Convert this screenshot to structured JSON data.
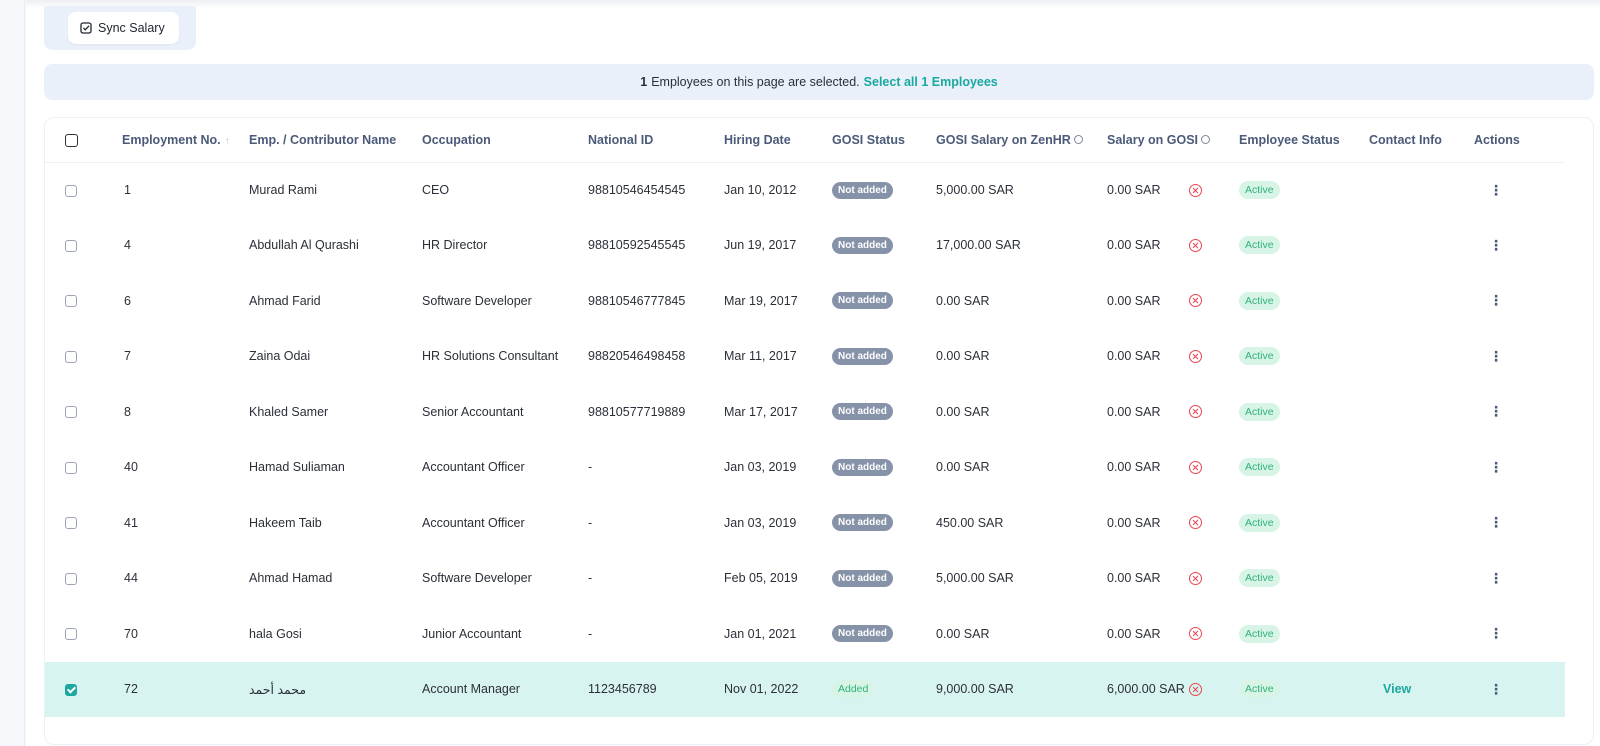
{
  "toolbar": {
    "sync_label": "Sync Salary"
  },
  "selection": {
    "count": "1",
    "text": "Employees on this page are selected.",
    "select_all_label": "Select all 1 Employees"
  },
  "table": {
    "headers": {
      "employment_no": "Employment No.",
      "name": "Emp. / Contributor Name",
      "occupation": "Occupation",
      "national_id": "National ID",
      "hiring_date": "Hiring Date",
      "gosi_status": "GOSI Status",
      "gosi_salary_zenhr": "GOSI Salary on ZenHR",
      "salary_on_gosi": "Salary on GOSI",
      "employee_status": "Employee Status",
      "contact_info": "Contact Info",
      "actions": "Actions"
    },
    "rows": [
      {
        "no": "1",
        "name": "Murad Rami",
        "occupation": "CEO",
        "national_id": "98810546454545",
        "hiring_date": "Jan 10, 2012",
        "gosi_status": "Not added",
        "gosi_salary": "5,000.00 SAR",
        "salary_on_gosi": "0.00 SAR",
        "status": "Active",
        "contact": "",
        "selected": false
      },
      {
        "no": "4",
        "name": "Abdullah Al Qurashi",
        "occupation": "HR Director",
        "national_id": "98810592545545",
        "hiring_date": "Jun 19, 2017",
        "gosi_status": "Not added",
        "gosi_salary": "17,000.00 SAR",
        "salary_on_gosi": "0.00 SAR",
        "status": "Active",
        "contact": "",
        "selected": false
      },
      {
        "no": "6",
        "name": "Ahmad Farid",
        "occupation": "Software Developer",
        "national_id": "98810546777845",
        "hiring_date": "Mar 19, 2017",
        "gosi_status": "Not added",
        "gosi_salary": "0.00 SAR",
        "salary_on_gosi": "0.00 SAR",
        "status": "Active",
        "contact": "",
        "selected": false
      },
      {
        "no": "7",
        "name": "Zaina Odai",
        "occupation": "HR Solutions Consultant",
        "national_id": "98820546498458",
        "hiring_date": "Mar 11, 2017",
        "gosi_status": "Not added",
        "gosi_salary": "0.00 SAR",
        "salary_on_gosi": "0.00 SAR",
        "status": "Active",
        "contact": "",
        "selected": false
      },
      {
        "no": "8",
        "name": "Khaled Samer",
        "occupation": "Senior Accountant",
        "national_id": "98810577719889",
        "hiring_date": "Mar 17, 2017",
        "gosi_status": "Not added",
        "gosi_salary": "0.00 SAR",
        "salary_on_gosi": "0.00 SAR",
        "status": "Active",
        "contact": "",
        "selected": false
      },
      {
        "no": "40",
        "name": "Hamad Suliaman",
        "occupation": "Accountant Officer",
        "national_id": "-",
        "hiring_date": "Jan 03, 2019",
        "gosi_status": "Not added",
        "gosi_salary": "0.00 SAR",
        "salary_on_gosi": "0.00 SAR",
        "status": "Active",
        "contact": "",
        "selected": false
      },
      {
        "no": "41",
        "name": "Hakeem Taib",
        "occupation": "Accountant Officer",
        "national_id": "-",
        "hiring_date": "Jan 03, 2019",
        "gosi_status": "Not added",
        "gosi_salary": "450.00 SAR",
        "salary_on_gosi": "0.00 SAR",
        "status": "Active",
        "contact": "",
        "selected": false
      },
      {
        "no": "44",
        "name": "Ahmad Hamad",
        "occupation": "Software Developer",
        "national_id": "-",
        "hiring_date": "Feb 05, 2019",
        "gosi_status": "Not added",
        "gosi_salary": "5,000.00 SAR",
        "salary_on_gosi": "0.00 SAR",
        "status": "Active",
        "contact": "",
        "selected": false
      },
      {
        "no": "70",
        "name": "hala Gosi",
        "occupation": "Junior Accountant",
        "national_id": "-",
        "hiring_date": "Jan 01, 2021",
        "gosi_status": "Not added",
        "gosi_salary": "0.00 SAR",
        "salary_on_gosi": "0.00 SAR",
        "status": "Active",
        "contact": "",
        "selected": false
      },
      {
        "no": "72",
        "name": "محمد أحمد",
        "occupation": "Account Manager",
        "national_id": "1123456789",
        "hiring_date": "Nov 01, 2022",
        "gosi_status": "Added",
        "gosi_salary": "9,000.00 SAR",
        "salary_on_gosi": "6,000.00 SAR",
        "status": "Active",
        "contact": "View",
        "selected": true
      }
    ]
  }
}
